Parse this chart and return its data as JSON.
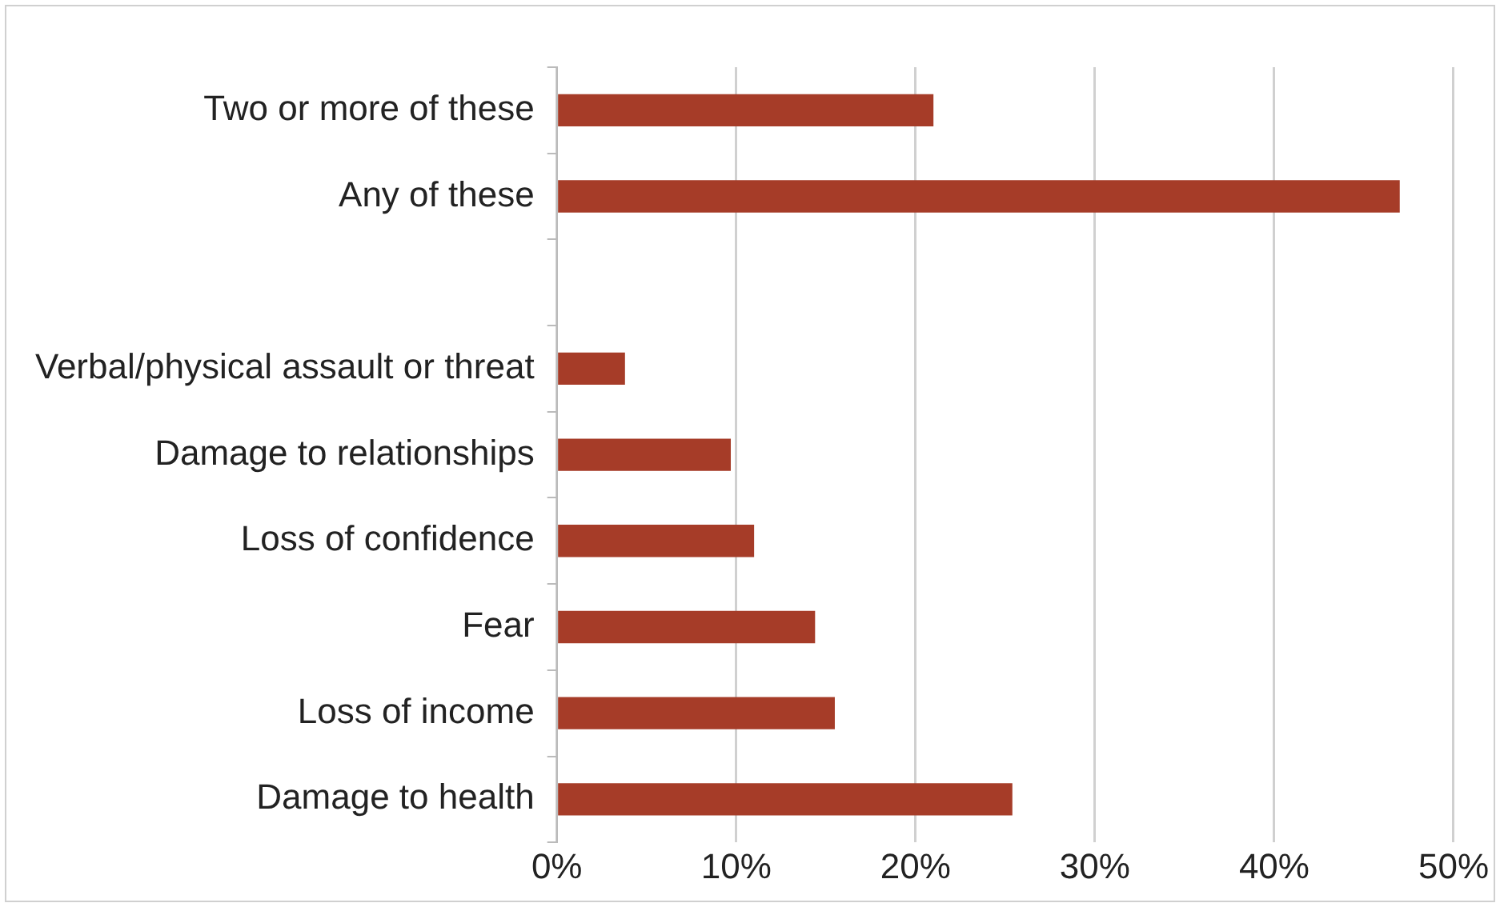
{
  "chart_data": {
    "type": "bar",
    "orientation": "horizontal",
    "categories": [
      "Two or more of these",
      "Any of these",
      null,
      "Verbal/physical assault or threat",
      "Damage to relationships",
      "Loss of confidence",
      "Fear",
      "Loss of income",
      "Damage to health"
    ],
    "values": [
      21.0,
      47.0,
      null,
      3.8,
      9.7,
      11.0,
      14.4,
      15.5,
      25.4
    ],
    "color": "#a63c28",
    "xlim": [
      0,
      50
    ],
    "xticks": [
      {
        "value": 0,
        "label": "0%"
      },
      {
        "value": 10,
        "label": "10%"
      },
      {
        "value": 20,
        "label": "20%"
      },
      {
        "value": 30,
        "label": "30%"
      },
      {
        "value": 40,
        "label": "40%"
      },
      {
        "value": 50,
        "label": "50%"
      }
    ],
    "grid": "x"
  }
}
